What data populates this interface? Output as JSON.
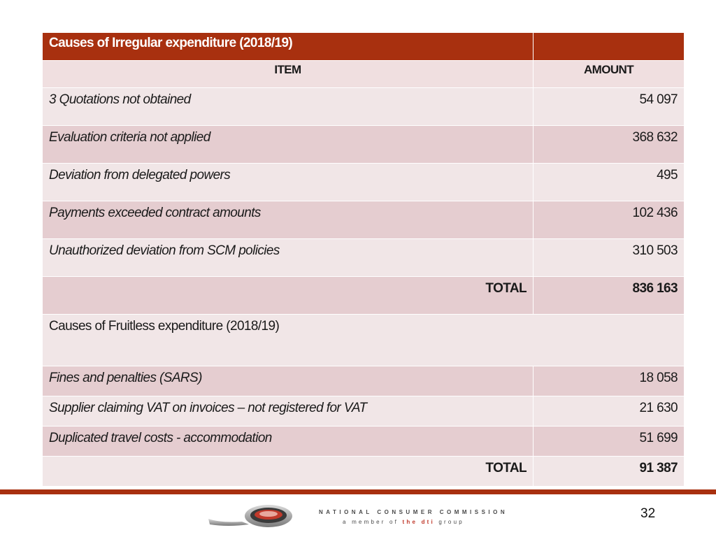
{
  "table": {
    "title": "Causes of Irregular expenditure (2018/19)",
    "col_item": "ITEM",
    "col_amount": "AMOUNT",
    "irregular_rows": [
      {
        "item": "3 Quotations not obtained",
        "amount": "54 097"
      },
      {
        "item": "Evaluation criteria not applied",
        "amount": "368 632"
      },
      {
        "item": "Deviation from delegated powers",
        "amount": "495"
      },
      {
        "item": "Payments exceeded contract amounts",
        "amount": "102 436"
      },
      {
        "item": "Unauthorized deviation from SCM policies",
        "amount": "310 503"
      }
    ],
    "irregular_total_label": "TOTAL",
    "irregular_total": "836 163",
    "fruitless_title": "Causes of Fruitless expenditure (2018/19)",
    "fruitless_rows": [
      {
        "item": "Fines and penalties (SARS)",
        "amount": "18 058"
      },
      {
        "item": "Supplier claiming VAT on invoices – not registered for VAT",
        "amount": "21 630"
      },
      {
        "item": "Duplicated travel costs - accommodation",
        "amount": "51 699"
      }
    ],
    "fruitless_total_label": "TOTAL",
    "fruitless_total": "91 387"
  },
  "footer": {
    "org_name": "NATIONAL CONSUMER COMMISSION",
    "tagline_prefix": "a member of",
    "tagline_the": "the",
    "tagline_brand": "dti",
    "tagline_suffix": "group",
    "page_number": "32"
  },
  "colors": {
    "header": "#a8300f",
    "row_light": "#f1e6e7",
    "row_dark": "#e5cdd0"
  },
  "icons": [
    "ncc-logo-icon"
  ]
}
